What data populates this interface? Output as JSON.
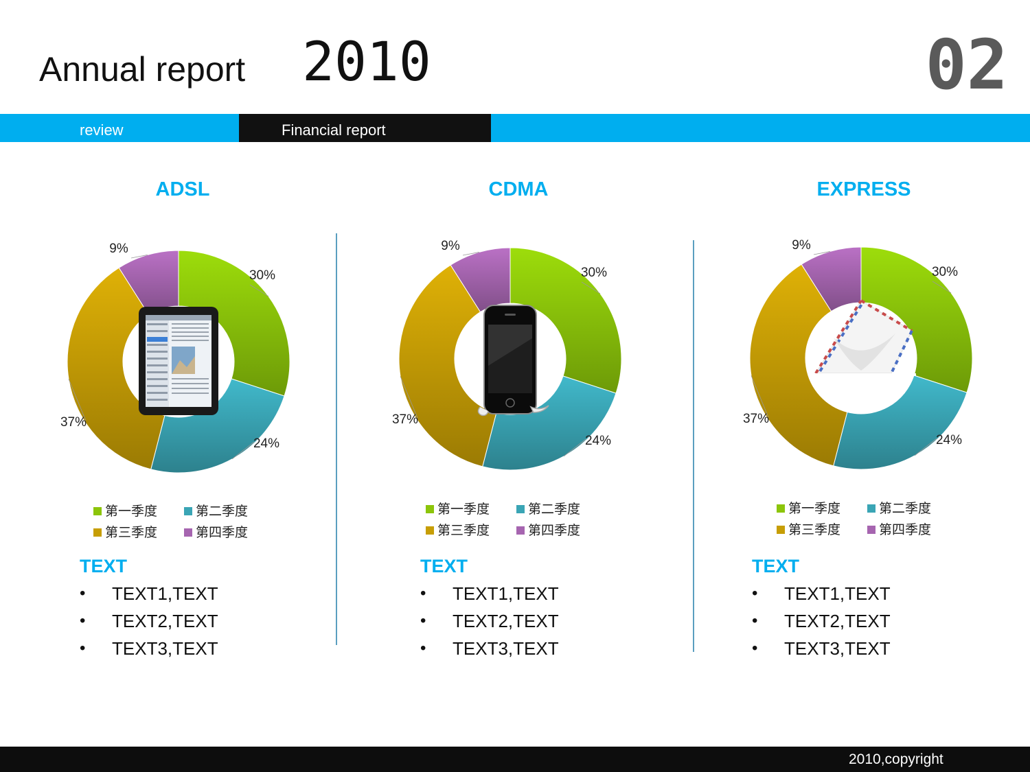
{
  "header": {
    "title": "Annual report",
    "year": "2010",
    "slide_number": "02"
  },
  "nav": {
    "review_label": "review",
    "financial_label": "Financial  report"
  },
  "colors": {
    "accent": "#00aeef",
    "q1": "#8cc50a",
    "q2": "#3aa5b5",
    "q3": "#c79e05",
    "q4": "#a665b0"
  },
  "chart_data": [
    {
      "type": "pie",
      "title": "ADSL",
      "center_icon": "tablet-icon",
      "categories": [
        "第一季度",
        "第二季度",
        "第三季度",
        "第四季度"
      ],
      "values": [
        30,
        24,
        37,
        9
      ],
      "labels": [
        "30%",
        "24%",
        "37%",
        "9%"
      ],
      "legend": "bottom"
    },
    {
      "type": "pie",
      "title": "CDMA",
      "center_icon": "phone-icon",
      "categories": [
        "第一季度",
        "第二季度",
        "第三季度",
        "第四季度"
      ],
      "values": [
        30,
        24,
        37,
        9
      ],
      "labels": [
        "30%",
        "24%",
        "37%",
        "9%"
      ],
      "legend": "bottom"
    },
    {
      "type": "pie",
      "title": "EXPRESS",
      "center_icon": "envelope-icon",
      "categories": [
        "第一季度",
        "第二季度",
        "第三季度",
        "第四季度"
      ],
      "values": [
        30,
        24,
        37,
        9
      ],
      "labels": [
        "30%",
        "24%",
        "37%",
        "9%"
      ],
      "legend": "bottom"
    }
  ],
  "text_blocks": [
    {
      "heading": "TEXT",
      "items": [
        "TEXT1,TEXT",
        "TEXT2,TEXT",
        "TEXT3,TEXT"
      ]
    },
    {
      "heading": "TEXT",
      "items": [
        "TEXT1,TEXT",
        "TEXT2,TEXT",
        "TEXT3,TEXT"
      ]
    },
    {
      "heading": "TEXT",
      "items": [
        "TEXT1,TEXT",
        "TEXT2,TEXT",
        "TEXT3,TEXT"
      ]
    }
  ],
  "footer": {
    "copyright": "2010,copyright"
  }
}
